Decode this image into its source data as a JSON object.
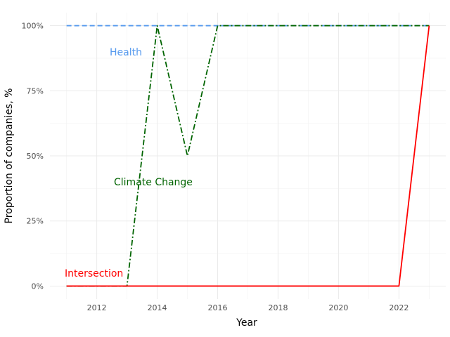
{
  "chart_data": {
    "type": "line",
    "title": "",
    "xlabel": "Year",
    "ylabel": "Proportion of companies, %",
    "xlim": [
      2010.45,
      2023.55
    ],
    "ylim": [
      -0.05,
      1.05
    ],
    "x_ticks": [
      2012,
      2014,
      2016,
      2018,
      2020,
      2022
    ],
    "x_tick_labels": [
      "2012",
      "2014",
      "2016",
      "2018",
      "2020",
      "2022"
    ],
    "y_ticks": [
      0,
      0.25,
      0.5,
      0.75,
      1.0
    ],
    "y_tick_labels": [
      "0%",
      "25%",
      "50%",
      "75%",
      "100%"
    ],
    "grid": true,
    "legend": "none",
    "x": [
      2011,
      2012,
      2013,
      2014,
      2015,
      2016,
      2017,
      2018,
      2019,
      2020,
      2021,
      2022,
      2023
    ],
    "series": [
      {
        "name": "Health",
        "color": "#5599ee",
        "dash": "dashed",
        "values": [
          1,
          1,
          1,
          1,
          1,
          1,
          1,
          1,
          1,
          1,
          1,
          1,
          1
        ]
      },
      {
        "name": "Climate Change",
        "color": "#006400",
        "dash": "dashdot",
        "values": [
          0,
          0,
          0,
          1,
          0.5,
          1,
          1,
          1,
          1,
          1,
          1,
          1,
          1
        ]
      },
      {
        "name": "Intersection",
        "color": "#ff0000",
        "dash": "solid",
        "values": [
          0,
          0,
          0,
          0,
          0,
          0,
          0,
          0,
          0,
          0,
          0,
          0,
          1
        ]
      }
    ]
  }
}
